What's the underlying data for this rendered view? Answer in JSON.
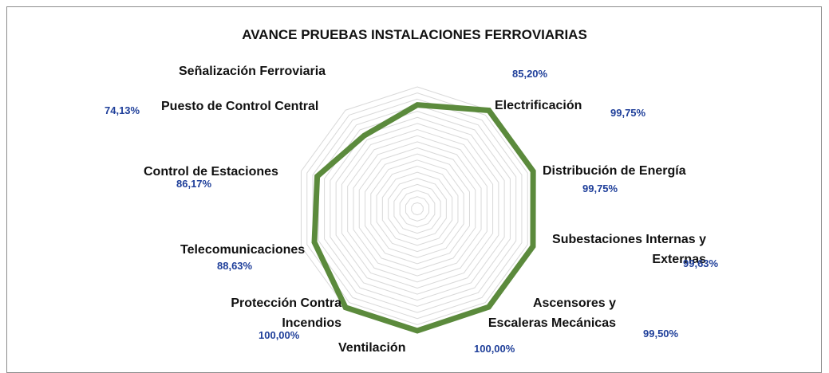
{
  "chart_data": {
    "type": "radar",
    "title": "AVANCE PRUEBAS INSTALACIONES FERROVIARIAS",
    "categories": [
      "Señalización Ferroviaria",
      "Electrificación",
      "Distribución de Energía",
      "Subestaciones Internas y Externas",
      "Ascensores y Escaleras Mecánicas",
      "Ventilación",
      "Protección Contra Incendios",
      "Telecomunicaciones",
      "Control de Estaciones",
      "Puesto de Control Central"
    ],
    "values": [
      85.2,
      99.75,
      99.75,
      99.63,
      99.5,
      100,
      100,
      88.63,
      86.17,
      74.13
    ],
    "value_labels": [
      "85,20%",
      "99,75%",
      "99,75%",
      "99,63%",
      "99,50%",
      "100,00%",
      "100,00%",
      "88,63%",
      "86,17%",
      "74,13%"
    ],
    "color": "#5b8a3c",
    "ylim": [
      0,
      100
    ],
    "yticks": [
      0,
      5,
      10,
      15,
      20,
      25,
      30,
      35,
      40,
      45,
      50,
      55,
      60,
      65,
      70,
      75,
      80,
      85,
      90,
      95,
      100
    ],
    "grid": true
  }
}
